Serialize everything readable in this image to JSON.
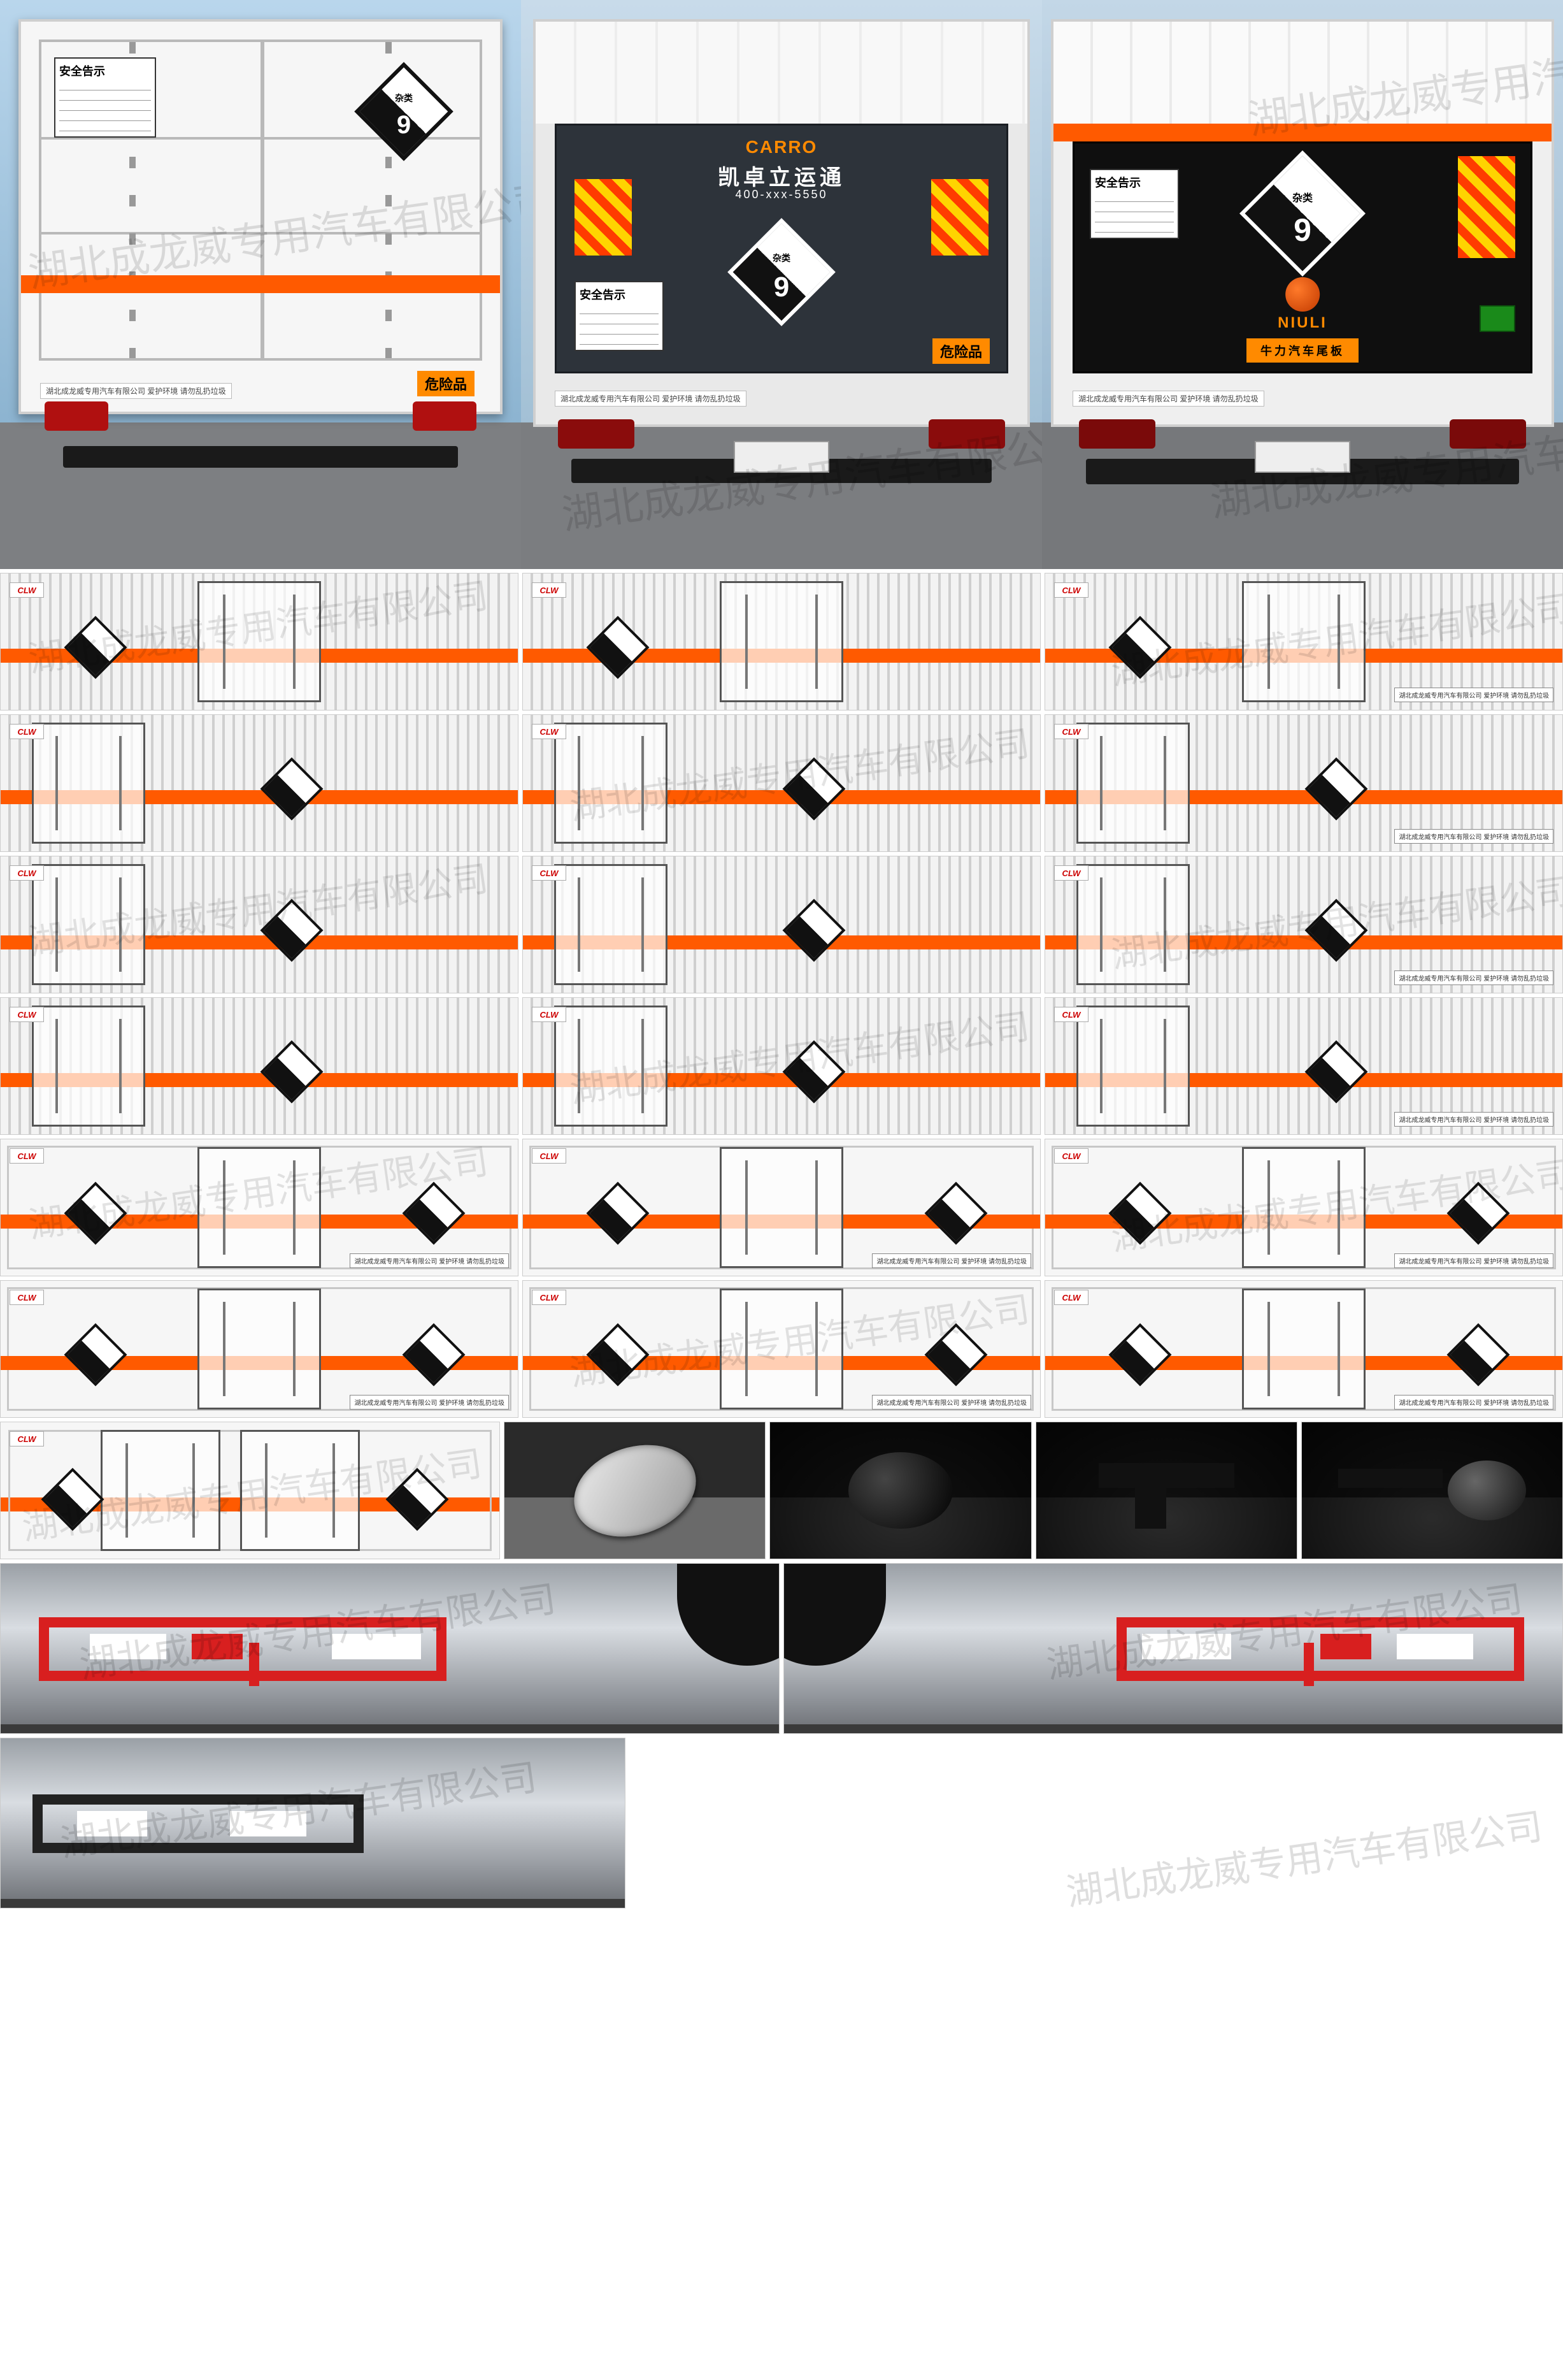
{
  "watermark_text": "湖北成龙威专用汽车有限公司",
  "brand_badge": "CLW",
  "colors": {
    "orange_stripe": "#ff5a00",
    "hazmat_border": "#111111",
    "hazmat_fill_top": "#ffffff",
    "hazmat_fill_bottom": "#111111",
    "danger_label_bg": "#ff8a00",
    "danger_label_text": "#000000",
    "reflector_red": "#ff3b00",
    "reflector_yellow": "#ffd400",
    "guard_red": "#d81f1f",
    "taillight": "#b01010",
    "sky_a": "#b9d6ec",
    "sky_b": "#7da8c7",
    "ground": "#7d7f82",
    "corrugated_light": "#f3f3f3",
    "corrugated_dark": "#cfcfcf",
    "white_body": "#f6f6f6",
    "dark_body": "#2d333a"
  },
  "hazmat": {
    "class_text": "杂类",
    "class_number": "9"
  },
  "danger_label": "危险品",
  "safety_sign": {
    "title": "安全告示",
    "lines": 5
  },
  "truck2": {
    "logo_text": "CARRO",
    "company": "凯卓立运通",
    "phone": "400-xxx-5550"
  },
  "truck3": {
    "tailgate_brand": "NIULI",
    "tailgate_sub": "牛力汽车尾板"
  },
  "footer_notice": "湖北成龙威专用汽车有限公司  爱护环境 请勿乱扔垃圾",
  "panel_rows": [
    {
      "cols": 3,
      "body": "corrugated",
      "door_pos": "center",
      "stripe_y": 0.55
    },
    {
      "cols": 3,
      "body": "corrugated",
      "door_pos": "left",
      "stripe_y": 0.55
    },
    {
      "cols": 3,
      "body": "corrugated",
      "door_pos": "left",
      "stripe_y": 0.58
    },
    {
      "cols": 3,
      "body": "corrugated",
      "door_pos": "left",
      "stripe_y": 0.55
    },
    {
      "cols": 3,
      "body": "white",
      "door_pos": "center",
      "borders": true,
      "stripe_y": 0.55
    },
    {
      "cols": 3,
      "body": "white",
      "door_pos": "center",
      "borders": true,
      "stripe_y": 0.55
    }
  ],
  "row7_widths": [
    0.32,
    0.17,
    0.17,
    0.17,
    0.17
  ],
  "details": [
    {
      "kind": "muffler"
    },
    {
      "kind": "axle"
    },
    {
      "kind": "bracket"
    },
    {
      "kind": "tank"
    }
  ],
  "guards": [
    {
      "style": "red",
      "width": 0.5
    },
    {
      "style": "red",
      "width": 0.5
    }
  ],
  "guard_last": {
    "style": "black",
    "width": 0.4
  }
}
